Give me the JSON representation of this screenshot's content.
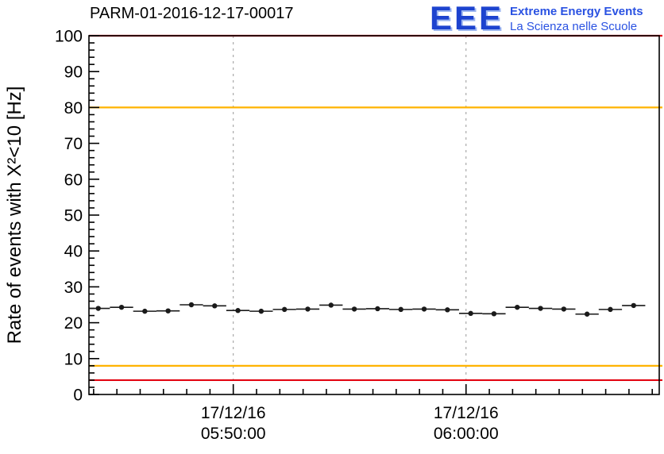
{
  "header": {
    "title": "PARM-01-2016-12-17-00017",
    "logo": {
      "acronym": "EEE",
      "line1": "Extreme Energy Events",
      "line2": "La Scienza nelle Scuole"
    }
  },
  "colors": {
    "limit_red": "#e30613",
    "warn_orange": "#ffb300",
    "marker_black": "#1a1a1a",
    "grid_gray": "#999999",
    "frame_black": "#000000",
    "logo_blue": "#1d43cf"
  },
  "chart_data": {
    "type": "scatter",
    "title": "PARM-01-2016-12-17-00017",
    "ylabel": "Rate of events with X²<10 [Hz]",
    "xlabel": "",
    "ylim": [
      0,
      100
    ],
    "y_ticks": [
      0,
      10,
      20,
      30,
      40,
      50,
      60,
      70,
      80,
      90,
      100
    ],
    "y_minor_step": 2,
    "grid": "vertical-dashed-at-major-x-ticks",
    "legend": "none",
    "x_axis_unit": "minutes relative to 05:50:00 on 17/12/16",
    "x_range": [
      -6.2,
      18.3
    ],
    "x_ticks": [
      {
        "pos": 0,
        "date": "17/12/16",
        "time": "05:50:00"
      },
      {
        "pos": 10,
        "date": "17/12/16",
        "time": "06:00:00"
      }
    ],
    "x_minor_step": 1,
    "reference_lines": [
      {
        "y": 100,
        "color": "red",
        "meaning": "upper alarm limit"
      },
      {
        "y": 80,
        "color": "orange",
        "meaning": "upper warning limit"
      },
      {
        "y": 8,
        "color": "orange",
        "meaning": "lower warning limit"
      },
      {
        "y": 4,
        "color": "red",
        "meaning": "lower alarm limit"
      }
    ],
    "series": [
      {
        "name": "rate",
        "marker": "filled-circle",
        "xerr_min": 0.5,
        "yerr_hz": 0.35,
        "points_xy": [
          [
            -5.8,
            24.0
          ],
          [
            -4.8,
            24.3
          ],
          [
            -3.8,
            23.2
          ],
          [
            -2.8,
            23.3
          ],
          [
            -1.8,
            25.0
          ],
          [
            -0.8,
            24.7
          ],
          [
            0.2,
            23.4
          ],
          [
            1.2,
            23.2
          ],
          [
            2.2,
            23.7
          ],
          [
            3.2,
            23.8
          ],
          [
            4.2,
            24.9
          ],
          [
            5.2,
            23.8
          ],
          [
            6.2,
            23.9
          ],
          [
            7.2,
            23.7
          ],
          [
            8.2,
            23.8
          ],
          [
            9.2,
            23.6
          ],
          [
            10.2,
            22.6
          ],
          [
            11.2,
            22.5
          ],
          [
            12.2,
            24.3
          ],
          [
            13.2,
            24.0
          ],
          [
            14.2,
            23.8
          ],
          [
            15.2,
            22.4
          ],
          [
            16.2,
            23.7
          ],
          [
            17.2,
            24.8
          ]
        ]
      }
    ]
  }
}
